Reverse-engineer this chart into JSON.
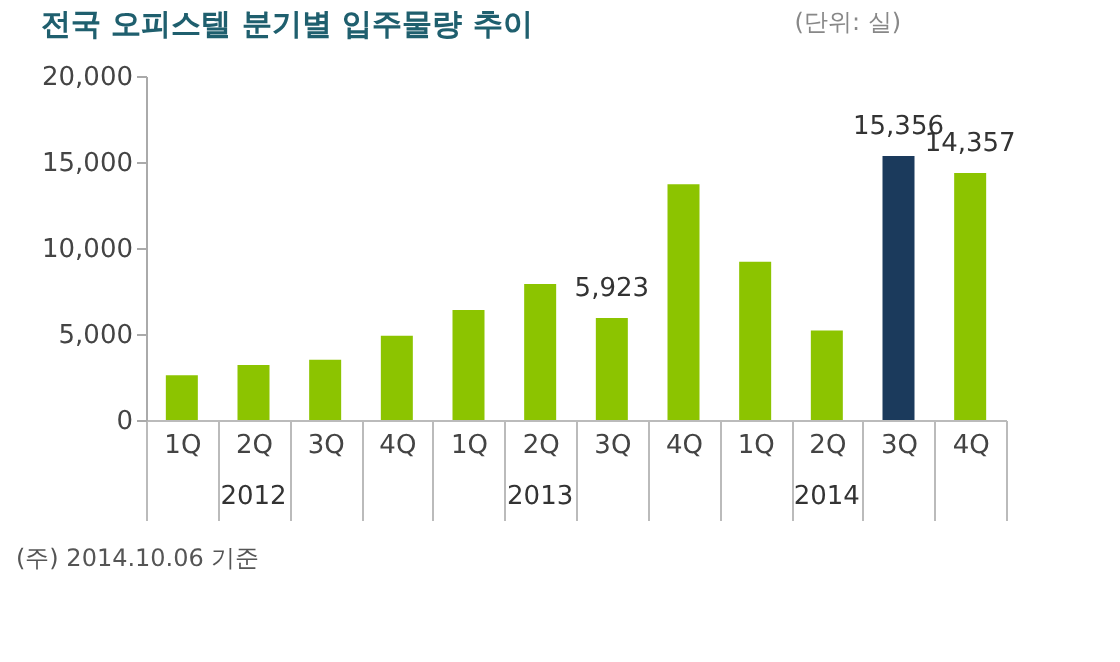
{
  "chart_data": {
    "type": "bar",
    "title": "전국 오피스텔 분기별 입주물량 추이",
    "subtitle": "(단위: 실)",
    "categories": [
      "1Q",
      "2Q",
      "3Q",
      "4Q",
      "1Q",
      "2Q",
      "3Q",
      "4Q",
      "1Q",
      "2Q",
      "3Q",
      "4Q"
    ],
    "values": [
      2600,
      3200,
      3500,
      4900,
      6400,
      7900,
      5923,
      13700,
      9200,
      5200,
      15356,
      14357
    ],
    "colors": [
      "#8cc400",
      "#8cc400",
      "#8cc400",
      "#8cc400",
      "#8cc400",
      "#8cc400",
      "#8cc400",
      "#8cc400",
      "#8cc400",
      "#8cc400",
      "#1b3a5c",
      "#8cc400"
    ],
    "value_labels": [
      null,
      null,
      null,
      null,
      null,
      null,
      "5,923",
      null,
      null,
      null,
      "15,356",
      "14,357"
    ],
    "ylim": [
      0,
      20000
    ],
    "yticks": [
      0,
      {
        "value": 5000,
        "label": "5,000"
      },
      {
        "value": 10000,
        "label": "10,000"
      },
      {
        "value": 15000,
        "label": "15,000"
      },
      {
        "value": 20000,
        "label": "20,000"
      }
    ],
    "grid": false,
    "annotations": [
      "2012",
      "2013",
      "2014",
      "(주) 2014.10.06 기준"
    ]
  }
}
